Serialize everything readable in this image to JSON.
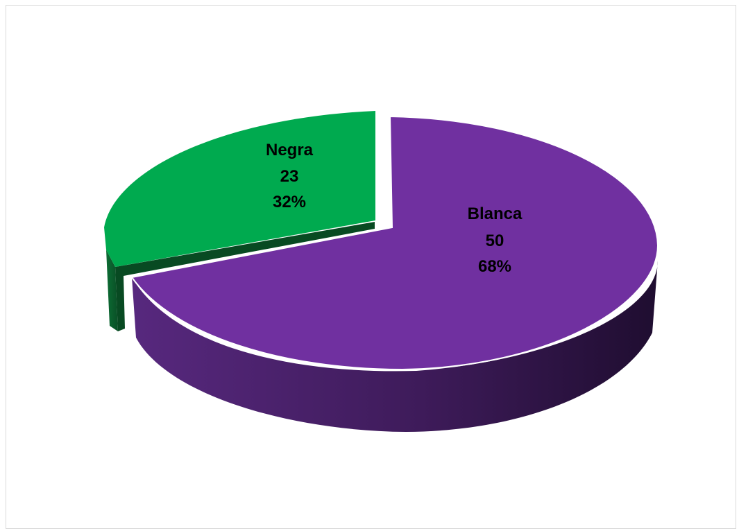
{
  "chart_data": {
    "type": "pie",
    "style": "3d-exploded",
    "slices": [
      {
        "name": "Negra",
        "value": 23,
        "percent": "32%",
        "color": "#00AA4F",
        "side_color": "#0A5B2A"
      },
      {
        "name": "Blanca",
        "value": 50,
        "percent": "68%",
        "color": "#7030A0",
        "side_color": "#3A1A58"
      }
    ],
    "legend": "none",
    "title": ""
  }
}
